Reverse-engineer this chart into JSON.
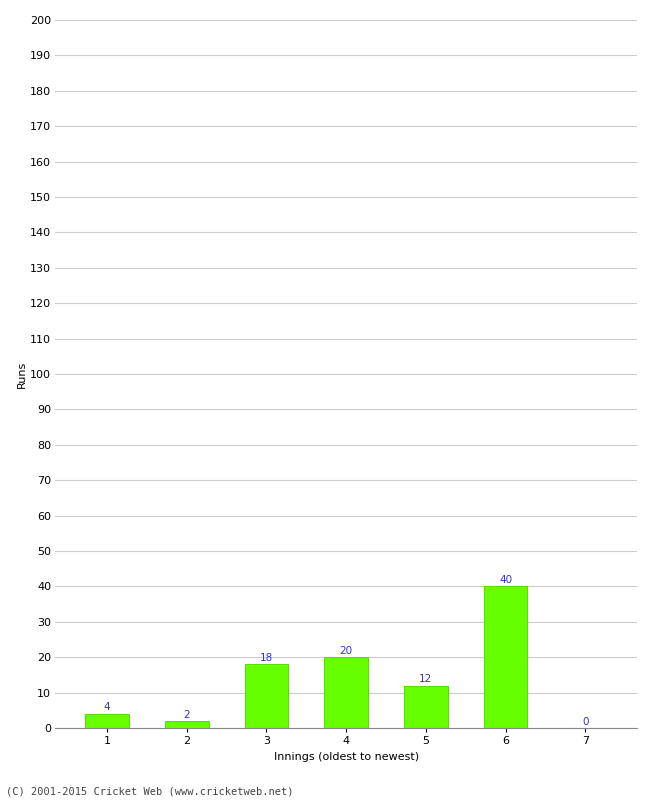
{
  "categories": [
    "1",
    "2",
    "3",
    "4",
    "5",
    "6",
    "7"
  ],
  "values": [
    4,
    2,
    18,
    20,
    12,
    40,
    0
  ],
  "bar_color": "#66ff00",
  "bar_edge_color": "#55dd00",
  "label_color": "#3333cc",
  "xlabel": "Innings (oldest to newest)",
  "ylabel": "Runs",
  "ylim": [
    0,
    200
  ],
  "yticks": [
    0,
    10,
    20,
    30,
    40,
    50,
    60,
    70,
    80,
    90,
    100,
    110,
    120,
    130,
    140,
    150,
    160,
    170,
    180,
    190,
    200
  ],
  "background_color": "#ffffff",
  "grid_color": "#cccccc",
  "border_color": "#aaaaaa",
  "footer": "(C) 2001-2015 Cricket Web (www.cricketweb.net)",
  "label_fontsize": 7.5,
  "axis_tick_fontsize": 8,
  "axis_label_fontsize": 8,
  "footer_fontsize": 7.5
}
